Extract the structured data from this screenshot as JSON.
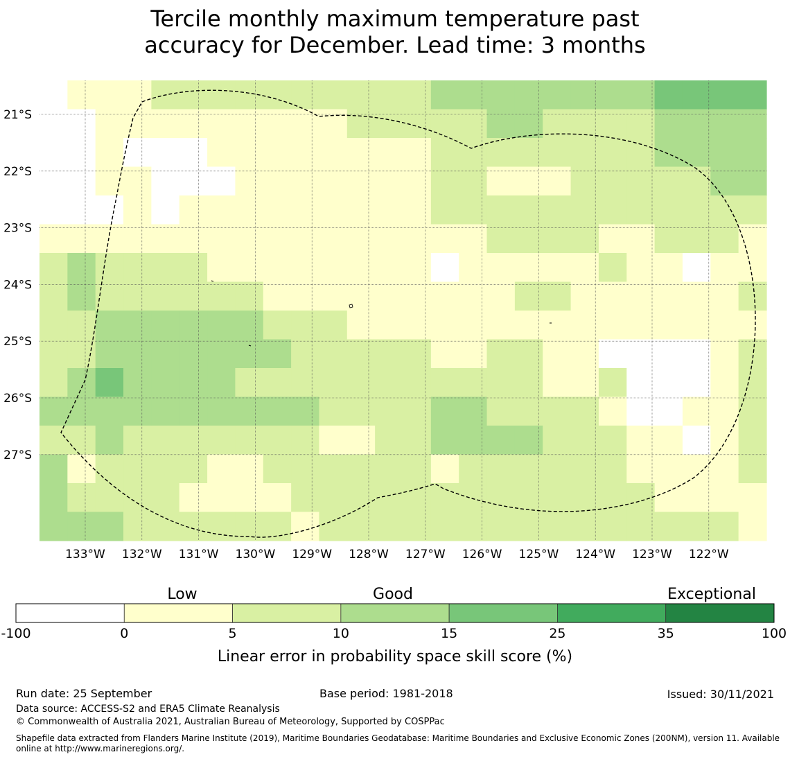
{
  "title": {
    "line1": "Tercile monthly maximum temperature past",
    "line2": "accuracy for December. Lead time: 3 months"
  },
  "map": {
    "lat_labels": [
      "21°S",
      "22°S",
      "23°S",
      "24°S",
      "25°S",
      "26°S",
      "27°S"
    ],
    "lon_labels": [
      "133°W",
      "132°W",
      "131°W",
      "130°W",
      "129°W",
      "128°W",
      "127°W",
      "126°W",
      "125°W",
      "124°W",
      "123°W",
      "122°W"
    ],
    "grid_note": "Cell classes: 0 = below 0 (white), 1 = 0–5, 2 = 5–10, 3 = 10–15, 4 = 15–25",
    "grid": [
      [
        0,
        1,
        1,
        1,
        2,
        2,
        2,
        2,
        2,
        2,
        2,
        2,
        2,
        2,
        3,
        3,
        3,
        3,
        3,
        3,
        3,
        3,
        4,
        4,
        4,
        4
      ],
      [
        0,
        0,
        1,
        1,
        1,
        1,
        1,
        1,
        1,
        1,
        1,
        2,
        2,
        2,
        2,
        2,
        3,
        3,
        2,
        2,
        2,
        2,
        3,
        3,
        3,
        3
      ],
      [
        0,
        0,
        1,
        0,
        0,
        0,
        1,
        1,
        1,
        1,
        1,
        1,
        1,
        1,
        2,
        2,
        2,
        2,
        2,
        2,
        2,
        2,
        3,
        3,
        3,
        3
      ],
      [
        0,
        0,
        1,
        1,
        0,
        0,
        0,
        1,
        1,
        1,
        1,
        1,
        1,
        1,
        2,
        2,
        1,
        1,
        1,
        2,
        2,
        2,
        2,
        2,
        3,
        3
      ],
      [
        0,
        0,
        0,
        1,
        0,
        1,
        1,
        1,
        1,
        1,
        1,
        1,
        1,
        1,
        2,
        2,
        2,
        2,
        2,
        2,
        2,
        2,
        2,
        2,
        2,
        2
      ],
      [
        1,
        1,
        1,
        1,
        1,
        1,
        1,
        1,
        1,
        1,
        1,
        1,
        1,
        1,
        1,
        1,
        2,
        2,
        2,
        2,
        1,
        1,
        2,
        2,
        2,
        1
      ],
      [
        2,
        3,
        2,
        2,
        2,
        2,
        1,
        1,
        1,
        1,
        1,
        1,
        1,
        1,
        0,
        1,
        1,
        1,
        1,
        1,
        2,
        1,
        1,
        0,
        1,
        1
      ],
      [
        2,
        3,
        2,
        2,
        2,
        2,
        2,
        2,
        1,
        1,
        1,
        1,
        1,
        1,
        1,
        1,
        1,
        2,
        2,
        1,
        1,
        1,
        1,
        1,
        1,
        2
      ],
      [
        2,
        2,
        3,
        3,
        3,
        3,
        3,
        3,
        2,
        2,
        2,
        1,
        1,
        1,
        1,
        1,
        1,
        1,
        1,
        1,
        1,
        1,
        1,
        1,
        1,
        1
      ],
      [
        2,
        2,
        3,
        3,
        3,
        3,
        3,
        3,
        3,
        2,
        2,
        2,
        2,
        2,
        1,
        1,
        2,
        2,
        1,
        1,
        0,
        0,
        0,
        0,
        1,
        2
      ],
      [
        2,
        3,
        4,
        3,
        3,
        3,
        3,
        2,
        2,
        2,
        2,
        2,
        2,
        2,
        2,
        2,
        2,
        2,
        1,
        1,
        2,
        0,
        0,
        0,
        1,
        2
      ],
      [
        3,
        3,
        3,
        3,
        3,
        3,
        3,
        3,
        3,
        3,
        2,
        2,
        2,
        2,
        3,
        3,
        2,
        2,
        2,
        2,
        1,
        0,
        0,
        1,
        1,
        2
      ],
      [
        2,
        2,
        3,
        2,
        2,
        2,
        2,
        2,
        2,
        2,
        1,
        1,
        2,
        2,
        3,
        3,
        3,
        3,
        2,
        2,
        2,
        1,
        1,
        0,
        1,
        2
      ],
      [
        3,
        1,
        2,
        2,
        2,
        2,
        1,
        1,
        2,
        2,
        2,
        2,
        2,
        2,
        1,
        2,
        2,
        2,
        2,
        2,
        2,
        1,
        1,
        1,
        1,
        2
      ],
      [
        3,
        2,
        2,
        2,
        2,
        1,
        1,
        1,
        1,
        2,
        2,
        2,
        2,
        2,
        2,
        2,
        2,
        2,
        2,
        2,
        2,
        2,
        1,
        1,
        1,
        1
      ],
      [
        3,
        3,
        3,
        2,
        2,
        2,
        2,
        2,
        2,
        1,
        2,
        2,
        2,
        2,
        2,
        2,
        2,
        2,
        2,
        2,
        2,
        2,
        2,
        2,
        2,
        1
      ]
    ]
  },
  "legend": {
    "category_low": "Low",
    "category_good": "Good",
    "category_exceptional": "Exceptional",
    "ticks": [
      "-100",
      "0",
      "5",
      "10",
      "15",
      "25",
      "35",
      "100"
    ],
    "colors": [
      "#ffffff",
      "#ffffcc",
      "#d9f0a3",
      "#addd8e",
      "#78c679",
      "#41ab5d",
      "#238443"
    ],
    "axis_label": "Linear error in probability space skill score (%)"
  },
  "footer": {
    "run_date": "Run date: 25 September",
    "base_period": "Base period: 1981-2018",
    "issued": "Issued: 30/11/2021",
    "data_source": "Data source: ACCESS-S2 and ERA5 Climate Reanalysis",
    "copyright": "© Commonwealth of Australia 2021, Australian Bureau of Meteorology, Supported by COSPPac",
    "shapefile": "Shapefile data extracted from Flanders Marine Institute (2019), Maritime Boundaries Geodatabase: Maritime Boundaries and Exclusive Economic Zones (200NM), version 11. Available online at http://www.marineregions.org/."
  }
}
